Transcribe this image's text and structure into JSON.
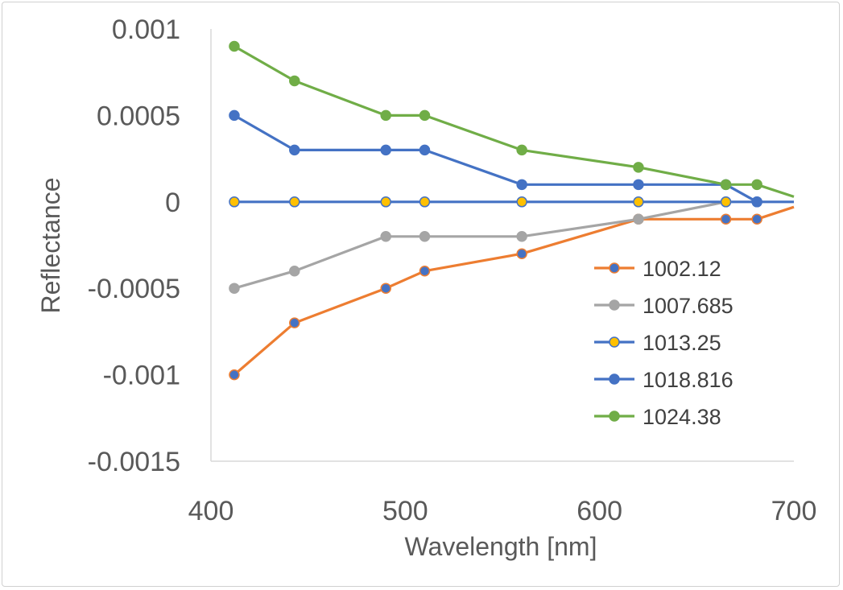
{
  "chart_data": {
    "type": "line",
    "title": "",
    "xlabel": "Wavelength [nm]",
    "ylabel": "Reflectance",
    "xlim": [
      400,
      700
    ],
    "ylim": [
      -0.0015,
      0.001
    ],
    "x_ticks": [
      400,
      500,
      600,
      700
    ],
    "x_tick_labels": [
      "400",
      "500",
      "600",
      "700"
    ],
    "y_ticks": [
      0.001,
      0.0005,
      0,
      -0.0005,
      -0.001,
      -0.0015
    ],
    "y_tick_labels": [
      "0.001",
      "0.0005",
      "0",
      "-0.0005",
      "-0.001",
      "-0.0015"
    ],
    "grid": false,
    "legend_position": "right",
    "series": [
      {
        "name": "1002.12",
        "color": "#ED7D31",
        "marker_color": "#4472C4",
        "x": [
          412,
          443,
          490,
          510,
          560,
          620,
          665,
          681,
          700
        ],
        "y": [
          -0.001,
          -0.0007,
          -0.0005,
          -0.0004,
          -0.0003,
          -0.0001,
          -0.0001,
          -0.0001,
          -3e-05
        ],
        "markers": [
          true,
          true,
          true,
          true,
          true,
          true,
          true,
          true,
          false
        ]
      },
      {
        "name": "1007.685",
        "color": "#A5A5A5",
        "marker_color": "#A5A5A5",
        "x": [
          412,
          443,
          490,
          510,
          560,
          620,
          665
        ],
        "y": [
          -0.0005,
          -0.0004,
          -0.0002,
          -0.0002,
          -0.0002,
          -0.0001,
          0
        ],
        "markers": [
          true,
          true,
          true,
          true,
          true,
          true,
          true
        ]
      },
      {
        "name": "1013.25",
        "color": "#4472C4",
        "marker_color": "#FFC000",
        "x": [
          412,
          443,
          490,
          510,
          560,
          620,
          665,
          681,
          700
        ],
        "y": [
          0,
          0,
          0,
          0,
          0,
          0,
          0,
          0,
          0
        ],
        "markers": [
          true,
          true,
          true,
          true,
          true,
          true,
          true,
          true,
          false
        ]
      },
      {
        "name": "1018.816",
        "color": "#4472C4",
        "marker_color": "#4472C4",
        "x": [
          412,
          443,
          490,
          510,
          560,
          620,
          665,
          681
        ],
        "y": [
          0.0005,
          0.0003,
          0.0003,
          0.0003,
          0.0001,
          0.0001,
          0.0001,
          0
        ],
        "markers": [
          true,
          true,
          true,
          true,
          true,
          true,
          true,
          true
        ]
      },
      {
        "name": "1024.38",
        "color": "#70AD47",
        "marker_color": "#70AD47",
        "x": [
          412,
          443,
          490,
          510,
          560,
          620,
          665,
          681,
          700
        ],
        "y": [
          0.0009,
          0.0007,
          0.0005,
          0.0005,
          0.0003,
          0.0002,
          0.0001,
          0.0001,
          3e-05
        ],
        "markers": [
          true,
          true,
          true,
          true,
          true,
          true,
          true,
          true,
          false
        ]
      }
    ]
  }
}
